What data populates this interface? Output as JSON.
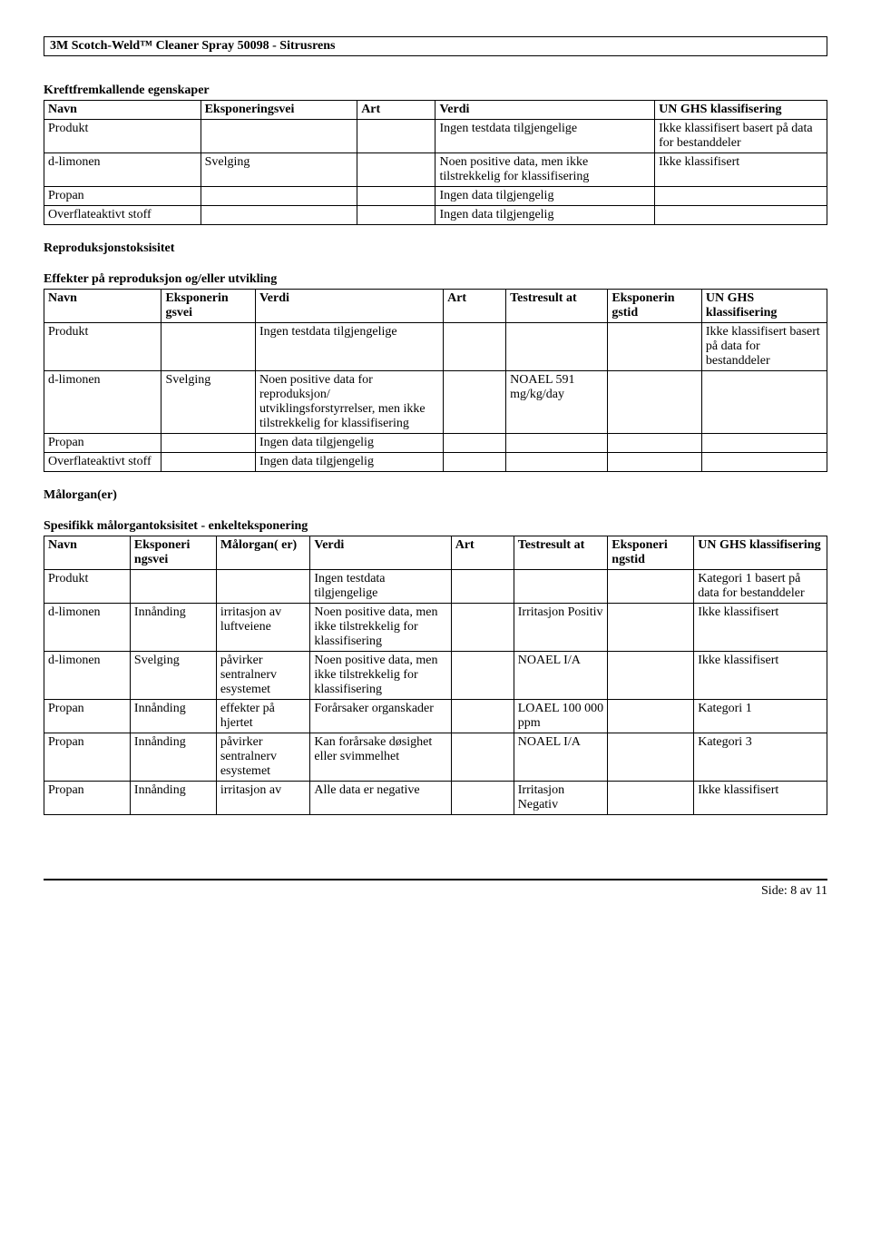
{
  "header_title": "3M Scotch-Weld™ Cleaner Spray 50098 - Sitrusrens",
  "section1_title": "Kreftfremkallende egenskaper",
  "section2_title": "Reproduksjonstoksisitet",
  "section3_title": "Effekter på reproduksjon og/eller utvikling",
  "section4_title": "Målorgan(er)",
  "section5_title": "Spesifikk målorgantoksisitet - enkelteksponering",
  "t1": {
    "headers": [
      "Navn",
      "Eksponeringsvei",
      "Art",
      "Verdi",
      "UN GHS klassifisering"
    ],
    "rows": [
      [
        "Produkt",
        "",
        "",
        "Ingen testdata tilgjengelige",
        "Ikke klassifisert basert på data for bestanddeler"
      ],
      [
        "d-limonen",
        "Svelging",
        "",
        "Noen positive data, men ikke tilstrekkelig for klassifisering",
        "Ikke klassifisert"
      ],
      [
        "Propan",
        "",
        "",
        "Ingen data tilgjengelig",
        ""
      ],
      [
        "Overflateaktivt stoff",
        "",
        "",
        "Ingen data tilgjengelig",
        ""
      ]
    ]
  },
  "t2": {
    "headers": [
      "Navn",
      "Eksponerin gsvei",
      "Verdi",
      "Art",
      "Testresult at",
      "Eksponerin gstid",
      "UN GHS klassifisering"
    ],
    "rows": [
      [
        "Produkt",
        "",
        "Ingen testdata tilgjengelige",
        "",
        "",
        "",
        "Ikke klassifisert basert på data for bestanddeler"
      ],
      [
        "d-limonen",
        "Svelging",
        "Noen positive data for reproduksjon/ utviklingsforstyrrelser, men ikke tilstrekkelig for klassifisering",
        "",
        "NOAEL 591 mg/kg/day",
        "",
        ""
      ],
      [
        "Propan",
        "",
        "Ingen data tilgjengelig",
        "",
        "",
        "",
        ""
      ],
      [
        "Overflateaktivt stoff",
        "",
        "Ingen data tilgjengelig",
        "",
        "",
        "",
        ""
      ]
    ]
  },
  "t3": {
    "headers": [
      "Navn",
      "Eksponeri ngsvei",
      "Målorgan( er)",
      "Verdi",
      "Art",
      "Testresult at",
      "Eksponeri ngstid",
      "UN GHS klassifisering"
    ],
    "rows": [
      [
        "Produkt",
        "",
        "",
        "Ingen testdata tilgjengelige",
        "",
        "",
        "",
        "Kategori 1 basert på data for bestanddeler"
      ],
      [
        "d-limonen",
        "Innånding",
        "irritasjon av luftveiene",
        "Noen positive data, men ikke tilstrekkelig for klassifisering",
        "",
        "Irritasjon Positiv",
        "",
        "Ikke klassifisert"
      ],
      [
        "d-limonen",
        "Svelging",
        "påvirker sentralnerv esystemet",
        "Noen positive data, men ikke tilstrekkelig for klassifisering",
        "",
        "NOAEL I/A",
        "",
        "Ikke klassifisert"
      ],
      [
        "Propan",
        "Innånding",
        "effekter på hjertet",
        "Forårsaker organskader",
        "",
        "LOAEL 100 000 ppm",
        "",
        "Kategori 1"
      ],
      [
        "Propan",
        "Innånding",
        "påvirker sentralnerv esystemet",
        "Kan forårsake døsighet eller svimmelhet",
        "",
        "NOAEL I/A",
        "",
        "Kategori 3"
      ],
      [
        "Propan",
        "Innånding",
        "irritasjon av",
        "Alle data er negative",
        "",
        "Irritasjon Negativ",
        "",
        "Ikke klassifisert"
      ]
    ]
  },
  "footer": "Side: 8 av  11",
  "col_widths": {
    "t1": [
      "20%",
      "20%",
      "10%",
      "28%",
      "22%"
    ],
    "t2": [
      "15%",
      "12%",
      "24%",
      "8%",
      "13%",
      "12%",
      "16%"
    ],
    "t3": [
      "11%",
      "11%",
      "12%",
      "18%",
      "8%",
      "12%",
      "11%",
      "17%"
    ]
  }
}
